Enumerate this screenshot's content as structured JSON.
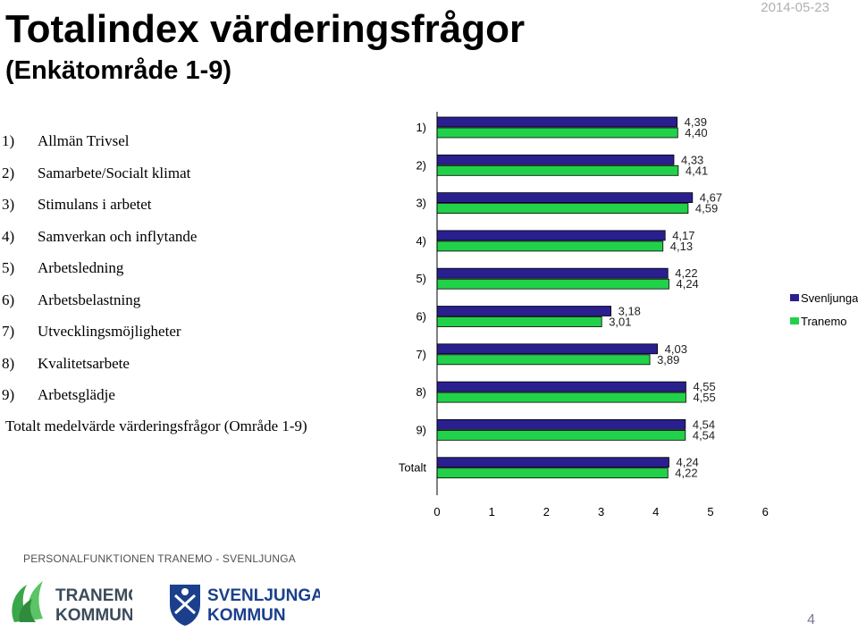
{
  "header": {
    "title": "Totalindex värderingsfrågor",
    "subtitle": "(Enkätområde 1-9)",
    "date": "2014-05-23"
  },
  "areas": [
    {
      "num": "1)",
      "label": "Allmän Trivsel"
    },
    {
      "num": "2)",
      "label": "Samarbete/Socialt klimat"
    },
    {
      "num": "3)",
      "label": "Stimulans i arbetet"
    },
    {
      "num": "4)",
      "label": "Samverkan och inflytande"
    },
    {
      "num": "5)",
      "label": "Arbetsledning"
    },
    {
      "num": "6)",
      "label": "Arbetsbelastning"
    },
    {
      "num": "7)",
      "label": "Utvecklingsmöjligheter"
    },
    {
      "num": "8)",
      "label": "Kvalitetsarbete"
    },
    {
      "num": "9)",
      "label": "Arbetsglädje"
    },
    {
      "num": "",
      "label": "Totalt medelvärde värderingsfrågor (Område 1-9)"
    }
  ],
  "chart_data": {
    "type": "bar",
    "orientation": "horizontal",
    "categories": [
      "1)",
      "2)",
      "3)",
      "4)",
      "5)",
      "6)",
      "7)",
      "8)",
      "9)",
      "Totalt"
    ],
    "series": [
      {
        "name": "Svenljunga",
        "color": "#2a1f8f",
        "values": [
          4.39,
          4.33,
          4.67,
          4.17,
          4.22,
          3.18,
          4.03,
          4.55,
          4.54,
          4.24
        ],
        "labels": [
          "4,39",
          "4,33",
          "4,67",
          "4,17",
          "4,22",
          "3,18",
          "4,03",
          "4,55",
          "4,54",
          "4,24"
        ]
      },
      {
        "name": "Tranemo",
        "color": "#22d14a",
        "values": [
          4.4,
          4.41,
          4.59,
          4.13,
          4.24,
          3.01,
          3.89,
          4.55,
          4.54,
          4.22
        ],
        "labels": [
          "4,40",
          "4,41",
          "4,59",
          "4,13",
          "4,24",
          "3,01",
          "3,89",
          "4,55",
          "4,54",
          "4,22"
        ]
      }
    ],
    "xlim": [
      0,
      6
    ],
    "xticks": [
      "0",
      "1",
      "2",
      "3",
      "4",
      "5",
      "6"
    ],
    "legend_position": "right",
    "grid": false
  },
  "footer": {
    "org": "PERSONALFUNKTIONEN TRANEMO - SVENLJUNGA",
    "logo_tranemo_line1": "TRANEMO",
    "logo_tranemo_line2": "KOMMUN",
    "logo_svenljunga_line1": "SVENLJUNGA",
    "logo_svenljunga_line2": "KOMMUN",
    "page_number": "4"
  }
}
